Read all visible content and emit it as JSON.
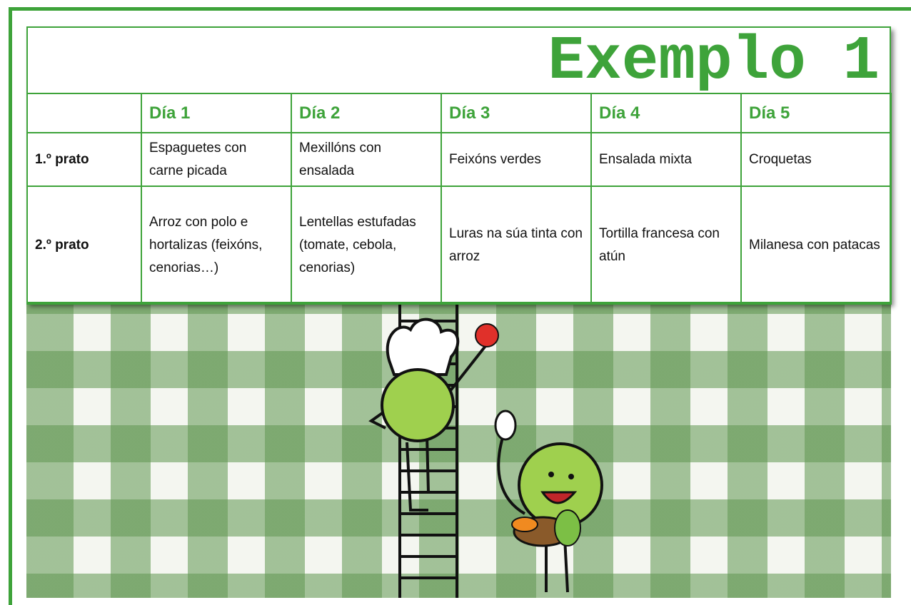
{
  "title": "Exemplo 1",
  "table": {
    "days": [
      "Día 1",
      "Día 2",
      "Día 3",
      "Día 4",
      "Día 5"
    ],
    "rows": [
      {
        "label": "1.º prato",
        "cells": [
          "Espaguetes con carne picada",
          "Mexillóns con ensalada",
          "Feixóns verdes",
          "Ensalada mixta",
          "Croquetas"
        ]
      },
      {
        "label": "2.º prato",
        "cells": [
          "Arroz con polo e hortalizas (feixóns, cenorias…)",
          "Lentellas estufadas (tomate, cebola, cenorias)",
          "Luras na súa tinta con arroz",
          "Tortilla francesa con atún",
          "Milanesa con patacas"
        ]
      }
    ]
  }
}
